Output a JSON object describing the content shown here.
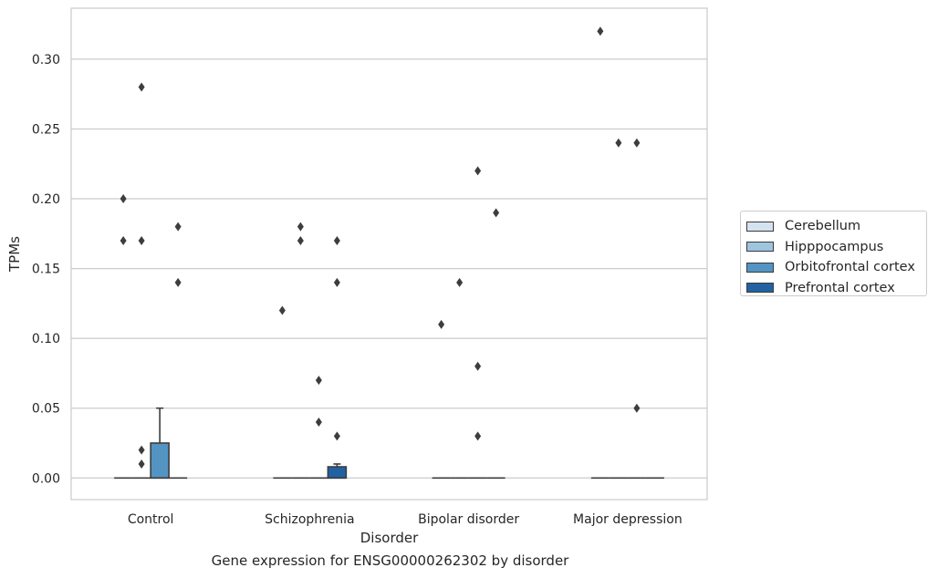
{
  "chart_data": {
    "type": "box",
    "xlabel": "Disorder",
    "ylabel": "TPMs",
    "caption": "Gene expression for ENSG00000262302 by disorder",
    "ylim": [
      -0.0155,
      0.3365
    ],
    "yticks": [
      "0.00",
      "0.05",
      "0.10",
      "0.15",
      "0.20",
      "0.25",
      "0.30"
    ],
    "grid": "horizontal",
    "legend_position": "right",
    "categories": [
      "Control",
      "Schizophrenia",
      "Bipolar disorder",
      "Major depression"
    ],
    "hues": [
      {
        "name": "Cerebellum",
        "color": "#d4e3ef"
      },
      {
        "name": "Hipppocampus",
        "color": "#9ec4de"
      },
      {
        "name": "Orbitofrontal cortex",
        "color": "#5394c3"
      },
      {
        "name": "Prefrontal cortex",
        "color": "#2262a3"
      }
    ],
    "boxes": [
      [
        {
          "q1": 0,
          "median": 0,
          "q3": 0,
          "whislo": 0,
          "whishi": 0,
          "fliers": [
            0.2,
            0.17
          ]
        },
        {
          "q1": 0,
          "median": 0,
          "q3": 0,
          "whislo": 0,
          "whishi": 0,
          "fliers": [
            0.28,
            0.17,
            0.02,
            0.01
          ]
        },
        {
          "q1": 0,
          "median": 0,
          "q3": 0.025,
          "whislo": 0,
          "whishi": 0.05,
          "fliers": []
        },
        {
          "q1": 0,
          "median": 0,
          "q3": 0,
          "whislo": 0,
          "whishi": 0,
          "fliers": [
            0.18,
            0.14
          ]
        }
      ],
      [
        {
          "q1": 0,
          "median": 0,
          "q3": 0,
          "whislo": 0,
          "whishi": 0,
          "fliers": [
            0.12
          ]
        },
        {
          "q1": 0,
          "median": 0,
          "q3": 0,
          "whislo": 0,
          "whishi": 0,
          "fliers": [
            0.18,
            0.17
          ]
        },
        {
          "q1": 0,
          "median": 0,
          "q3": 0,
          "whislo": 0,
          "whishi": 0,
          "fliers": [
            0.07,
            0.04
          ]
        },
        {
          "q1": 0,
          "median": 0,
          "q3": 0.008,
          "whislo": 0,
          "whishi": 0.01,
          "fliers": [
            0.17,
            0.14,
            0.03
          ]
        }
      ],
      [
        {
          "q1": 0,
          "median": 0,
          "q3": 0,
          "whislo": 0,
          "whishi": 0,
          "fliers": [
            0.11
          ]
        },
        {
          "q1": 0,
          "median": 0,
          "q3": 0,
          "whislo": 0,
          "whishi": 0,
          "fliers": [
            0.14
          ]
        },
        {
          "q1": 0,
          "median": 0,
          "q3": 0,
          "whislo": 0,
          "whishi": 0,
          "fliers": [
            0.22,
            0.08,
            0.03
          ]
        },
        {
          "q1": 0,
          "median": 0,
          "q3": 0,
          "whislo": 0,
          "whishi": 0,
          "fliers": [
            0.19
          ]
        }
      ],
      [
        {
          "q1": 0,
          "median": 0,
          "q3": 0,
          "whislo": 0,
          "whishi": 0,
          "fliers": [
            0.32
          ]
        },
        {
          "q1": 0,
          "median": 0,
          "q3": 0,
          "whislo": 0,
          "whishi": 0,
          "fliers": [
            0.24
          ]
        },
        {
          "q1": 0,
          "median": 0,
          "q3": 0,
          "whislo": 0,
          "whishi": 0,
          "fliers": [
            0.24,
            0.05
          ]
        },
        {
          "q1": 0,
          "median": 0,
          "q3": 0,
          "whislo": 0,
          "whishi": 0,
          "fliers": []
        }
      ]
    ]
  }
}
